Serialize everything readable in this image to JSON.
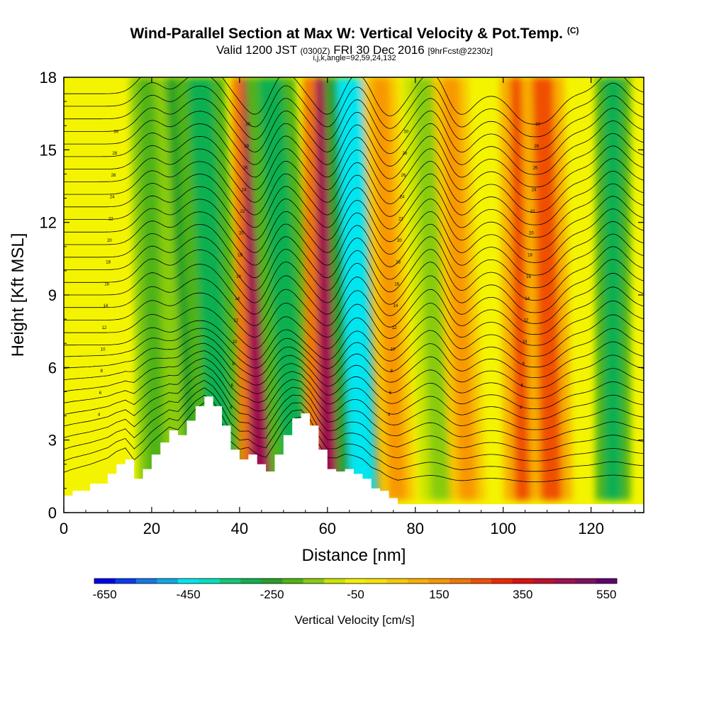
{
  "header": {
    "title": "Wind-Parallel Section at Max W: Vertical Velocity & Pot.Temp.",
    "copyright_mark": "(C)",
    "valid_prefix": "Valid 1200 JST",
    "valid_utc": "(0300Z)",
    "valid_date": "FRI 30 Dec 2016",
    "forecast_tag": "[9hrFcst@2230z]",
    "section_params": "i,j,k,angle=92,59,24,132"
  },
  "colors": {
    "background_field": "#f4f400",
    "terrain": "#ffffff",
    "contour": "#000000",
    "colorbar": [
      "#0000f0",
      "#0a3cf0",
      "#1478e6",
      "#10a8e6",
      "#00e6f0",
      "#00e0c0",
      "#10c878",
      "#10b050",
      "#28a028",
      "#50b414",
      "#88cc10",
      "#c8e400",
      "#f0f000",
      "#f8e000",
      "#f8c800",
      "#f8b000",
      "#f89800",
      "#f07800",
      "#f05000",
      "#f02800",
      "#e01010",
      "#c01030",
      "#a01050",
      "#801060",
      "#600070"
    ]
  },
  "chart_data": {
    "type": "heatmap",
    "subtype": "vertical cross-section with potential-temperature contours",
    "xlabel": "Distance [nm]",
    "ylabel": "Height [Kft MSL]",
    "xlim": [
      0,
      132
    ],
    "ylim": [
      0,
      18
    ],
    "xticks": [
      0,
      20,
      40,
      60,
      80,
      100,
      120
    ],
    "yticks": [
      0,
      3,
      6,
      9,
      12,
      15,
      18
    ],
    "colorbar": {
      "label": "Vertical Velocity [cm/s]",
      "min": -650,
      "max": 600,
      "step": 50,
      "tick_labels": [
        "-650",
        "-450",
        "-250",
        "-50",
        "150",
        "350",
        "550"
      ]
    },
    "terrain_profile": {
      "x": [
        0,
        2,
        6,
        10,
        12,
        14,
        16,
        18,
        20,
        22,
        24,
        26,
        28,
        30,
        32,
        34,
        36,
        38,
        40,
        42,
        44,
        46,
        48,
        50,
        52,
        54,
        56,
        58,
        60,
        62,
        64,
        66,
        68,
        70,
        72,
        74,
        76,
        80,
        132
      ],
      "height": [
        0.7,
        0.9,
        1.2,
        1.6,
        2.0,
        2.2,
        1.4,
        1.8,
        2.4,
        2.9,
        3.4,
        3.2,
        3.8,
        4.4,
        4.8,
        4.4,
        3.6,
        2.6,
        2.2,
        2.4,
        2.0,
        1.7,
        2.4,
        3.2,
        3.9,
        4.1,
        3.6,
        2.6,
        1.8,
        1.7,
        1.8,
        1.6,
        1.4,
        1.0,
        0.9,
        0.6,
        0.35,
        0.35,
        0.35
      ]
    },
    "w_bands": [
      {
        "x_low": 21,
        "x_high": 19,
        "width": 2.5,
        "w": -200
      },
      {
        "x_low": 31,
        "x_high": 26,
        "width": 3.5,
        "w": -250
      },
      {
        "x_low": 36,
        "x_high": 31,
        "width": 3.5,
        "w": -300
      },
      {
        "x_low": 45,
        "x_high": 43,
        "width": 3.0,
        "w": 450
      },
      {
        "x_low": 53,
        "x_high": 47,
        "width": 3.5,
        "w": -300
      },
      {
        "x_low": 61,
        "x_high": 60,
        "width": 3.5,
        "w": 450
      },
      {
        "x_low": 68,
        "x_high": 65,
        "width": 3.5,
        "w": -450
      },
      {
        "x_low": 76,
        "x_high": 72,
        "width": 2.5,
        "w": 150
      },
      {
        "x_low": 86,
        "x_high": 82,
        "width": 3.0,
        "w": -150
      },
      {
        "x_low": 92,
        "x_high": 88,
        "width": 2.5,
        "w": 150
      },
      {
        "x_low": 105,
        "x_high": 104,
        "width": 3.0,
        "w": 250
      },
      {
        "x_low": 111,
        "x_high": 109,
        "width": 3.0,
        "w": 250
      },
      {
        "x_low": 125,
        "x_high": 125,
        "width": 2.5,
        "w": -300
      }
    ],
    "theta_contours": {
      "count": 32,
      "base_height_kft": 1.2,
      "spacing_kft": 0.52,
      "labels": [
        "4",
        "6",
        "8",
        "10",
        "12",
        "14",
        "16",
        "18",
        "20",
        "22",
        "24",
        "26",
        "28",
        "30"
      ]
    }
  }
}
